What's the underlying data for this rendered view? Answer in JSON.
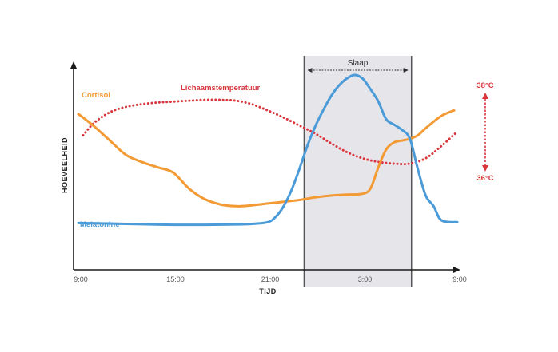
{
  "chart_data": {
    "type": "line",
    "xlabel": "TIJD",
    "ylabel": "HOEVEELHEID",
    "x_ticks": [
      "9:00",
      "15:00",
      "21:00",
      "3:00",
      "9:00"
    ],
    "x_tick_hours": [
      0,
      6,
      12,
      18,
      24
    ],
    "xlim_hours": [
      0,
      24
    ],
    "grid": false,
    "colors": {
      "cortisol": "#f39a34",
      "temperatuur": "#d9363e",
      "melatonine": "#4a9bd8",
      "sleep_band": "#e6e5ea",
      "axis": "#1a1a1a"
    },
    "sleep": {
      "label": "Slaap",
      "start_hour": 14.3,
      "end_hour": 21.1
    },
    "temperature_scale": {
      "high": "38°C",
      "low": "36°C"
    },
    "series": [
      {
        "name": "Cortisol",
        "style": "solid",
        "color": "#f39a34",
        "x": [
          0,
          1,
          2,
          3,
          4,
          5,
          6,
          7,
          8,
          9,
          10,
          11,
          12,
          13,
          14,
          15,
          16,
          17,
          18,
          18.5,
          19,
          19.5,
          20,
          20.5,
          21,
          21.5,
          22,
          23,
          23.8
        ],
        "y": [
          0.78,
          0.71,
          0.63,
          0.55,
          0.51,
          0.48,
          0.45,
          0.36,
          0.3,
          0.27,
          0.26,
          0.265,
          0.275,
          0.285,
          0.295,
          0.31,
          0.32,
          0.325,
          0.33,
          0.36,
          0.48,
          0.58,
          0.62,
          0.63,
          0.64,
          0.66,
          0.7,
          0.77,
          0.8
        ]
      },
      {
        "name": "Lichaamstemperatuur",
        "style": "dotted",
        "color": "#d9363e",
        "x": [
          0.3,
          1,
          2,
          3,
          4,
          5,
          6,
          7,
          8,
          9,
          10,
          11,
          12,
          13,
          14,
          15,
          16,
          17,
          18,
          19,
          20,
          21,
          22,
          23,
          24
        ],
        "y": [
          0.66,
          0.73,
          0.79,
          0.82,
          0.835,
          0.845,
          0.85,
          0.855,
          0.86,
          0.86,
          0.855,
          0.835,
          0.8,
          0.76,
          0.715,
          0.67,
          0.615,
          0.565,
          0.53,
          0.51,
          0.5,
          0.5,
          0.53,
          0.6,
          0.68
        ]
      },
      {
        "name": "Melatonine",
        "style": "solid",
        "color": "#4a9bd8",
        "x": [
          0,
          2,
          4,
          6,
          8,
          10,
          11,
          12,
          12.5,
          13,
          13.5,
          14,
          14.5,
          15,
          15.5,
          16,
          16.5,
          17,
          17.5,
          18,
          18.5,
          19,
          19.5,
          20,
          20.5,
          21,
          21.5,
          22,
          22.5,
          23,
          24
        ],
        "y": [
          0.165,
          0.162,
          0.158,
          0.155,
          0.155,
          0.157,
          0.16,
          0.17,
          0.2,
          0.26,
          0.35,
          0.47,
          0.6,
          0.71,
          0.8,
          0.88,
          0.94,
          0.98,
          1.0,
          0.98,
          0.92,
          0.85,
          0.75,
          0.72,
          0.69,
          0.64,
          0.47,
          0.32,
          0.26,
          0.18,
          0.17
        ]
      }
    ]
  }
}
